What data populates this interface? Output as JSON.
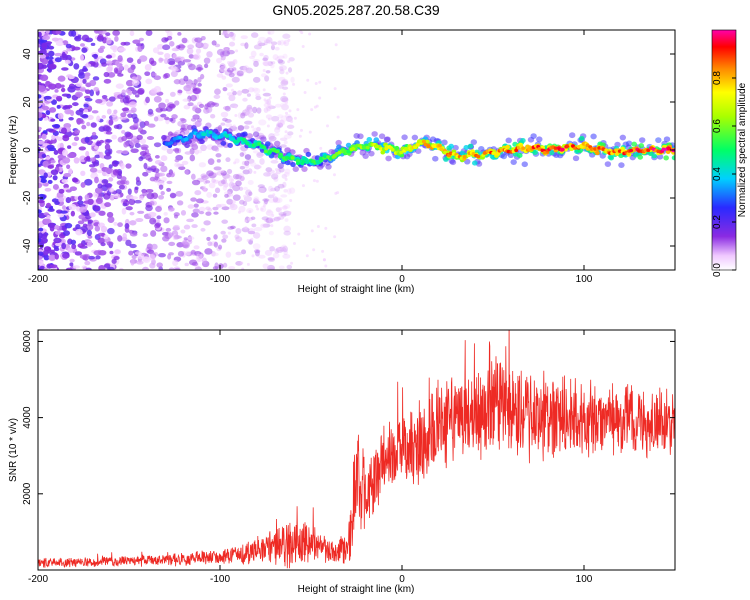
{
  "figure_title": "GN05.2025.287.20.58.C39",
  "colors": {
    "snr_line": "#ee2a24",
    "axis": "#000000",
    "colormap": [
      "#ffffff",
      "#8a2be2",
      "#2a2aff",
      "#00d0ff",
      "#00ff66",
      "#ffff00",
      "#ff8800",
      "#ff0000",
      "#ff00aa"
    ]
  },
  "chart_data": [
    {
      "type": "heatmap",
      "title": "GN05.2025.287.20.58.C39",
      "xlabel": "Height of straight line (km)",
      "ylabel": "Frequency (Hz)",
      "xlim": [
        -200,
        150
      ],
      "ylim": [
        -50,
        50
      ],
      "x_ticks": [
        -200,
        -100,
        0,
        100
      ],
      "x_tick_labels": [
        "-200",
        "-100",
        "0",
        "100"
      ],
      "y_ticks": [
        -40,
        -20,
        0,
        20,
        40
      ],
      "y_tick_labels": [
        "-40",
        "-20",
        "0",
        "20",
        "40"
      ],
      "colorbar": {
        "label": "Normalized spectral amplitude",
        "range": [
          0,
          1
        ],
        "ticks": [
          0.0,
          0.2,
          0.4,
          0.6,
          0.8
        ],
        "tick_labels": [
          "0.0",
          "0.2",
          "0.4",
          "0.6",
          "0.8"
        ]
      },
      "ridge_frequency": {
        "x": [
          -130,
          -120,
          -110,
          -100,
          -90,
          -80,
          -70,
          -60,
          -50,
          -40,
          -30,
          -20,
          -10,
          0,
          10,
          20,
          30,
          40,
          50,
          60,
          70,
          80,
          90,
          100,
          110,
          120,
          130,
          140,
          150
        ],
        "freq": [
          3,
          5,
          7,
          6,
          4,
          2,
          -1,
          -4,
          -5,
          -3,
          0,
          2,
          1,
          -1,
          3,
          1,
          -3,
          -2,
          -1,
          0,
          1,
          0,
          1,
          2,
          0,
          -1,
          0,
          0,
          0
        ],
        "amplitude": [
          0.3,
          0.35,
          0.4,
          0.4,
          0.45,
          0.5,
          0.55,
          0.55,
          0.5,
          0.55,
          0.6,
          0.65,
          0.7,
          0.7,
          0.75,
          0.8,
          0.8,
          0.8,
          0.85,
          0.85,
          0.85,
          0.9,
          0.9,
          0.85,
          0.9,
          0.85,
          0.9,
          0.95,
          0.95
        ]
      }
    },
    {
      "type": "line",
      "xlabel": "Height of straight line (km)",
      "ylabel": "SNR (10 * v/v)",
      "xlim": [
        -200,
        150
      ],
      "ylim": [
        0,
        6300
      ],
      "x_ticks": [
        -200,
        -100,
        0,
        100
      ],
      "x_tick_labels": [
        "-200",
        "-100",
        "0",
        "100"
      ],
      "y_ticks": [
        2000,
        4000,
        6000
      ],
      "y_tick_labels": [
        "2000",
        "4000",
        "6000"
      ],
      "series": [
        {
          "name": "SNR",
          "x": [
            -200,
            -180,
            -160,
            -140,
            -120,
            -100,
            -90,
            -80,
            -70,
            -60,
            -50,
            -45,
            -40,
            -35,
            -30,
            -27,
            -25,
            -22,
            -20,
            -18,
            -15,
            -10,
            -5,
            0,
            5,
            10,
            15,
            20,
            25,
            30,
            40,
            50,
            60,
            70,
            80,
            90,
            100,
            110,
            120,
            130,
            140,
            150
          ],
          "mean": [
            200,
            200,
            220,
            250,
            280,
            350,
            400,
            500,
            600,
            700,
            750,
            600,
            500,
            400,
            600,
            1500,
            2500,
            2200,
            1800,
            2000,
            2500,
            2800,
            3000,
            3200,
            3300,
            3400,
            3500,
            3700,
            3800,
            4000,
            4100,
            4200,
            4200,
            4100,
            4000,
            4000,
            3950,
            3950,
            3900,
            3900,
            3850,
            3850
          ],
          "spread": [
            120,
            120,
            130,
            140,
            160,
            200,
            260,
            350,
            500,
            600,
            500,
            400,
            350,
            300,
            500,
            1200,
            1500,
            1200,
            1000,
            900,
            900,
            900,
            900,
            950,
            1000,
            1050,
            1100,
            1150,
            1200,
            1250,
            1250,
            1250,
            1200,
            1150,
            1100,
            1050,
            1000,
            950,
            900,
            900,
            850,
            800
          ]
        }
      ]
    }
  ]
}
